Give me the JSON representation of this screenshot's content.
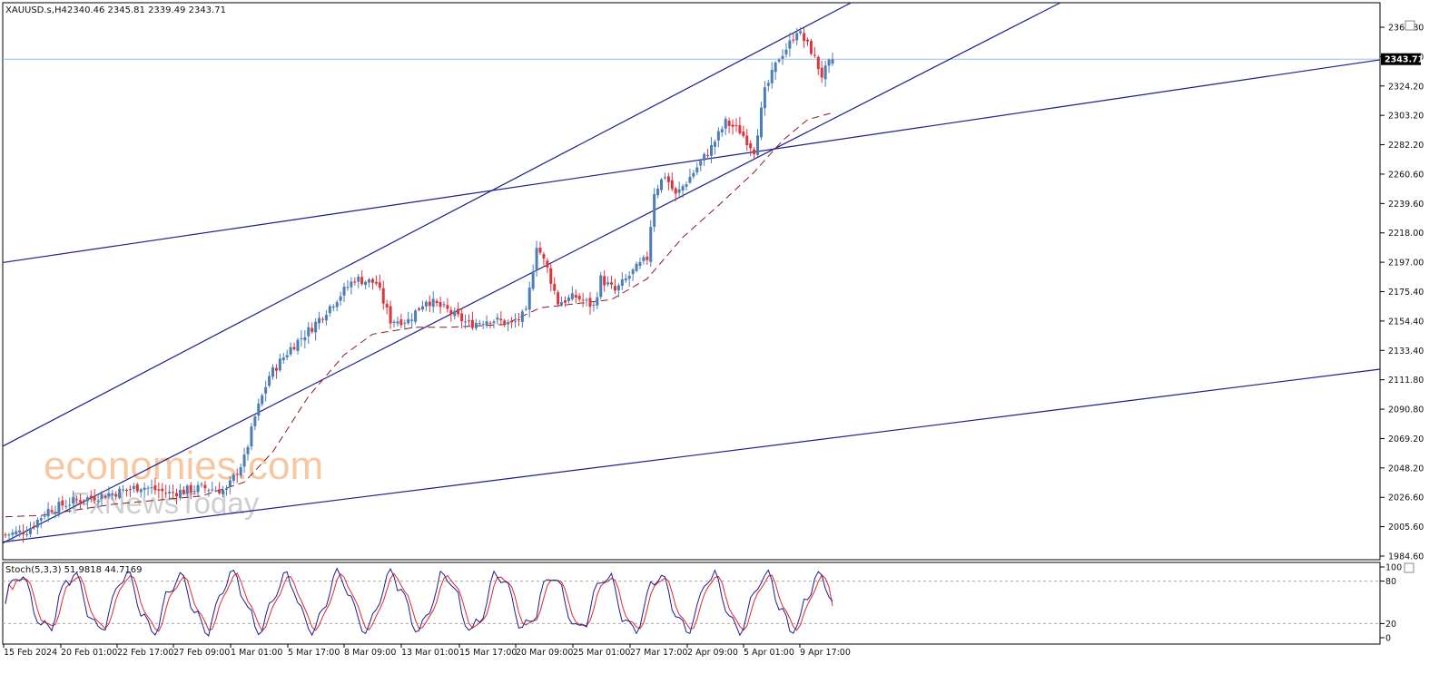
{
  "header": {
    "symbol": "XAUUSD.s,H4",
    "ohlc": "2340.46 2345.81 2339.49 2343.71"
  },
  "stoch_header": {
    "label": "Stoch(5,3,3) 51.9818 44.7169"
  },
  "watermark": {
    "line1": "economies.com",
    "line2": "FxNewsToday"
  },
  "colors": {
    "bull": "#4a7eb5",
    "bear": "#d9363e",
    "trend": "#1c1f8c",
    "ma": "#8b1a1a",
    "price_line": "#9ac0e0",
    "stoch_main": "#1c1f8c",
    "stoch_signal": "#e0282f"
  },
  "chart_data": {
    "type": "candlestick",
    "title": "",
    "price_axis": {
      "ticks": [
        "2366.80",
        "2345.40",
        "2324.20",
        "2303.20",
        "2282.20",
        "2260.60",
        "2239.60",
        "2218.00",
        "2197.00",
        "2175.40",
        "2154.40",
        "2133.40",
        "2111.80",
        "2090.80",
        "2069.20",
        "2048.20",
        "2026.60",
        "2005.60",
        "1984.60"
      ],
      "current_price": "2343.71",
      "range": [
        1984.6,
        2366.8
      ]
    },
    "time_axis": {
      "labels": [
        "15 Feb 2024",
        "20 Feb 01:00",
        "22 Feb 17:00",
        "27 Feb 09:00",
        "1 Mar 01:00",
        "5 Mar 17:00",
        "8 Mar 09:00",
        "13 Mar 01:00",
        "15 Mar 17:00",
        "20 Mar 09:00",
        "25 Mar 01:00",
        "27 Mar 17:00",
        "2 Apr 09:00",
        "5 Apr 01:00",
        "9 Apr 17:00"
      ]
    },
    "close_path_keypoints": [
      [
        0,
        2000
      ],
      [
        6,
        2003
      ],
      [
        12,
        2018
      ],
      [
        20,
        2025
      ],
      [
        30,
        2030
      ],
      [
        38,
        2035
      ],
      [
        46,
        2030
      ],
      [
        55,
        2034
      ],
      [
        62,
        2032
      ],
      [
        67,
        2055
      ],
      [
        70,
        2085
      ],
      [
        74,
        2115
      ],
      [
        80,
        2135
      ],
      [
        86,
        2150
      ],
      [
        92,
        2168
      ],
      [
        98,
        2185
      ],
      [
        104,
        2182
      ],
      [
        108,
        2155
      ],
      [
        113,
        2155
      ],
      [
        118,
        2170
      ],
      [
        124,
        2162
      ],
      [
        130,
        2152
      ],
      [
        136,
        2156
      ],
      [
        142,
        2152
      ],
      [
        146,
        2160
      ],
      [
        149,
        2210
      ],
      [
        152,
        2192
      ],
      [
        155,
        2168
      ],
      [
        160,
        2172
      ],
      [
        165,
        2165
      ],
      [
        167,
        2185
      ],
      [
        171,
        2176
      ],
      [
        176,
        2190
      ],
      [
        180,
        2200
      ],
      [
        182,
        2248
      ],
      [
        185,
        2260
      ],
      [
        188,
        2245
      ],
      [
        193,
        2262
      ],
      [
        198,
        2280
      ],
      [
        202,
        2298
      ],
      [
        206,
        2292
      ],
      [
        210,
        2278
      ],
      [
        213,
        2320
      ],
      [
        217,
        2345
      ],
      [
        220,
        2355
      ],
      [
        222,
        2365
      ],
      [
        226,
        2350
      ],
      [
        229,
        2332
      ],
      [
        232,
        2343.71
      ]
    ],
    "moving_average_keypoints": [
      [
        0,
        2013
      ],
      [
        10,
        2014
      ],
      [
        30,
        2022
      ],
      [
        55,
        2028
      ],
      [
        67,
        2038
      ],
      [
        75,
        2060
      ],
      [
        85,
        2100
      ],
      [
        95,
        2130
      ],
      [
        103,
        2145
      ],
      [
        115,
        2150
      ],
      [
        125,
        2150
      ],
      [
        140,
        2152
      ],
      [
        150,
        2164
      ],
      [
        160,
        2167
      ],
      [
        170,
        2170
      ],
      [
        180,
        2185
      ],
      [
        190,
        2215
      ],
      [
        200,
        2238
      ],
      [
        210,
        2262
      ],
      [
        218,
        2285
      ],
      [
        225,
        2300
      ],
      [
        232,
        2305
      ]
    ],
    "stochastic": {
      "levels": [
        20,
        80
      ],
      "ticks": [
        "100",
        "80",
        "20",
        "0"
      ],
      "main": 51.9818,
      "signal": 44.7169
    }
  }
}
